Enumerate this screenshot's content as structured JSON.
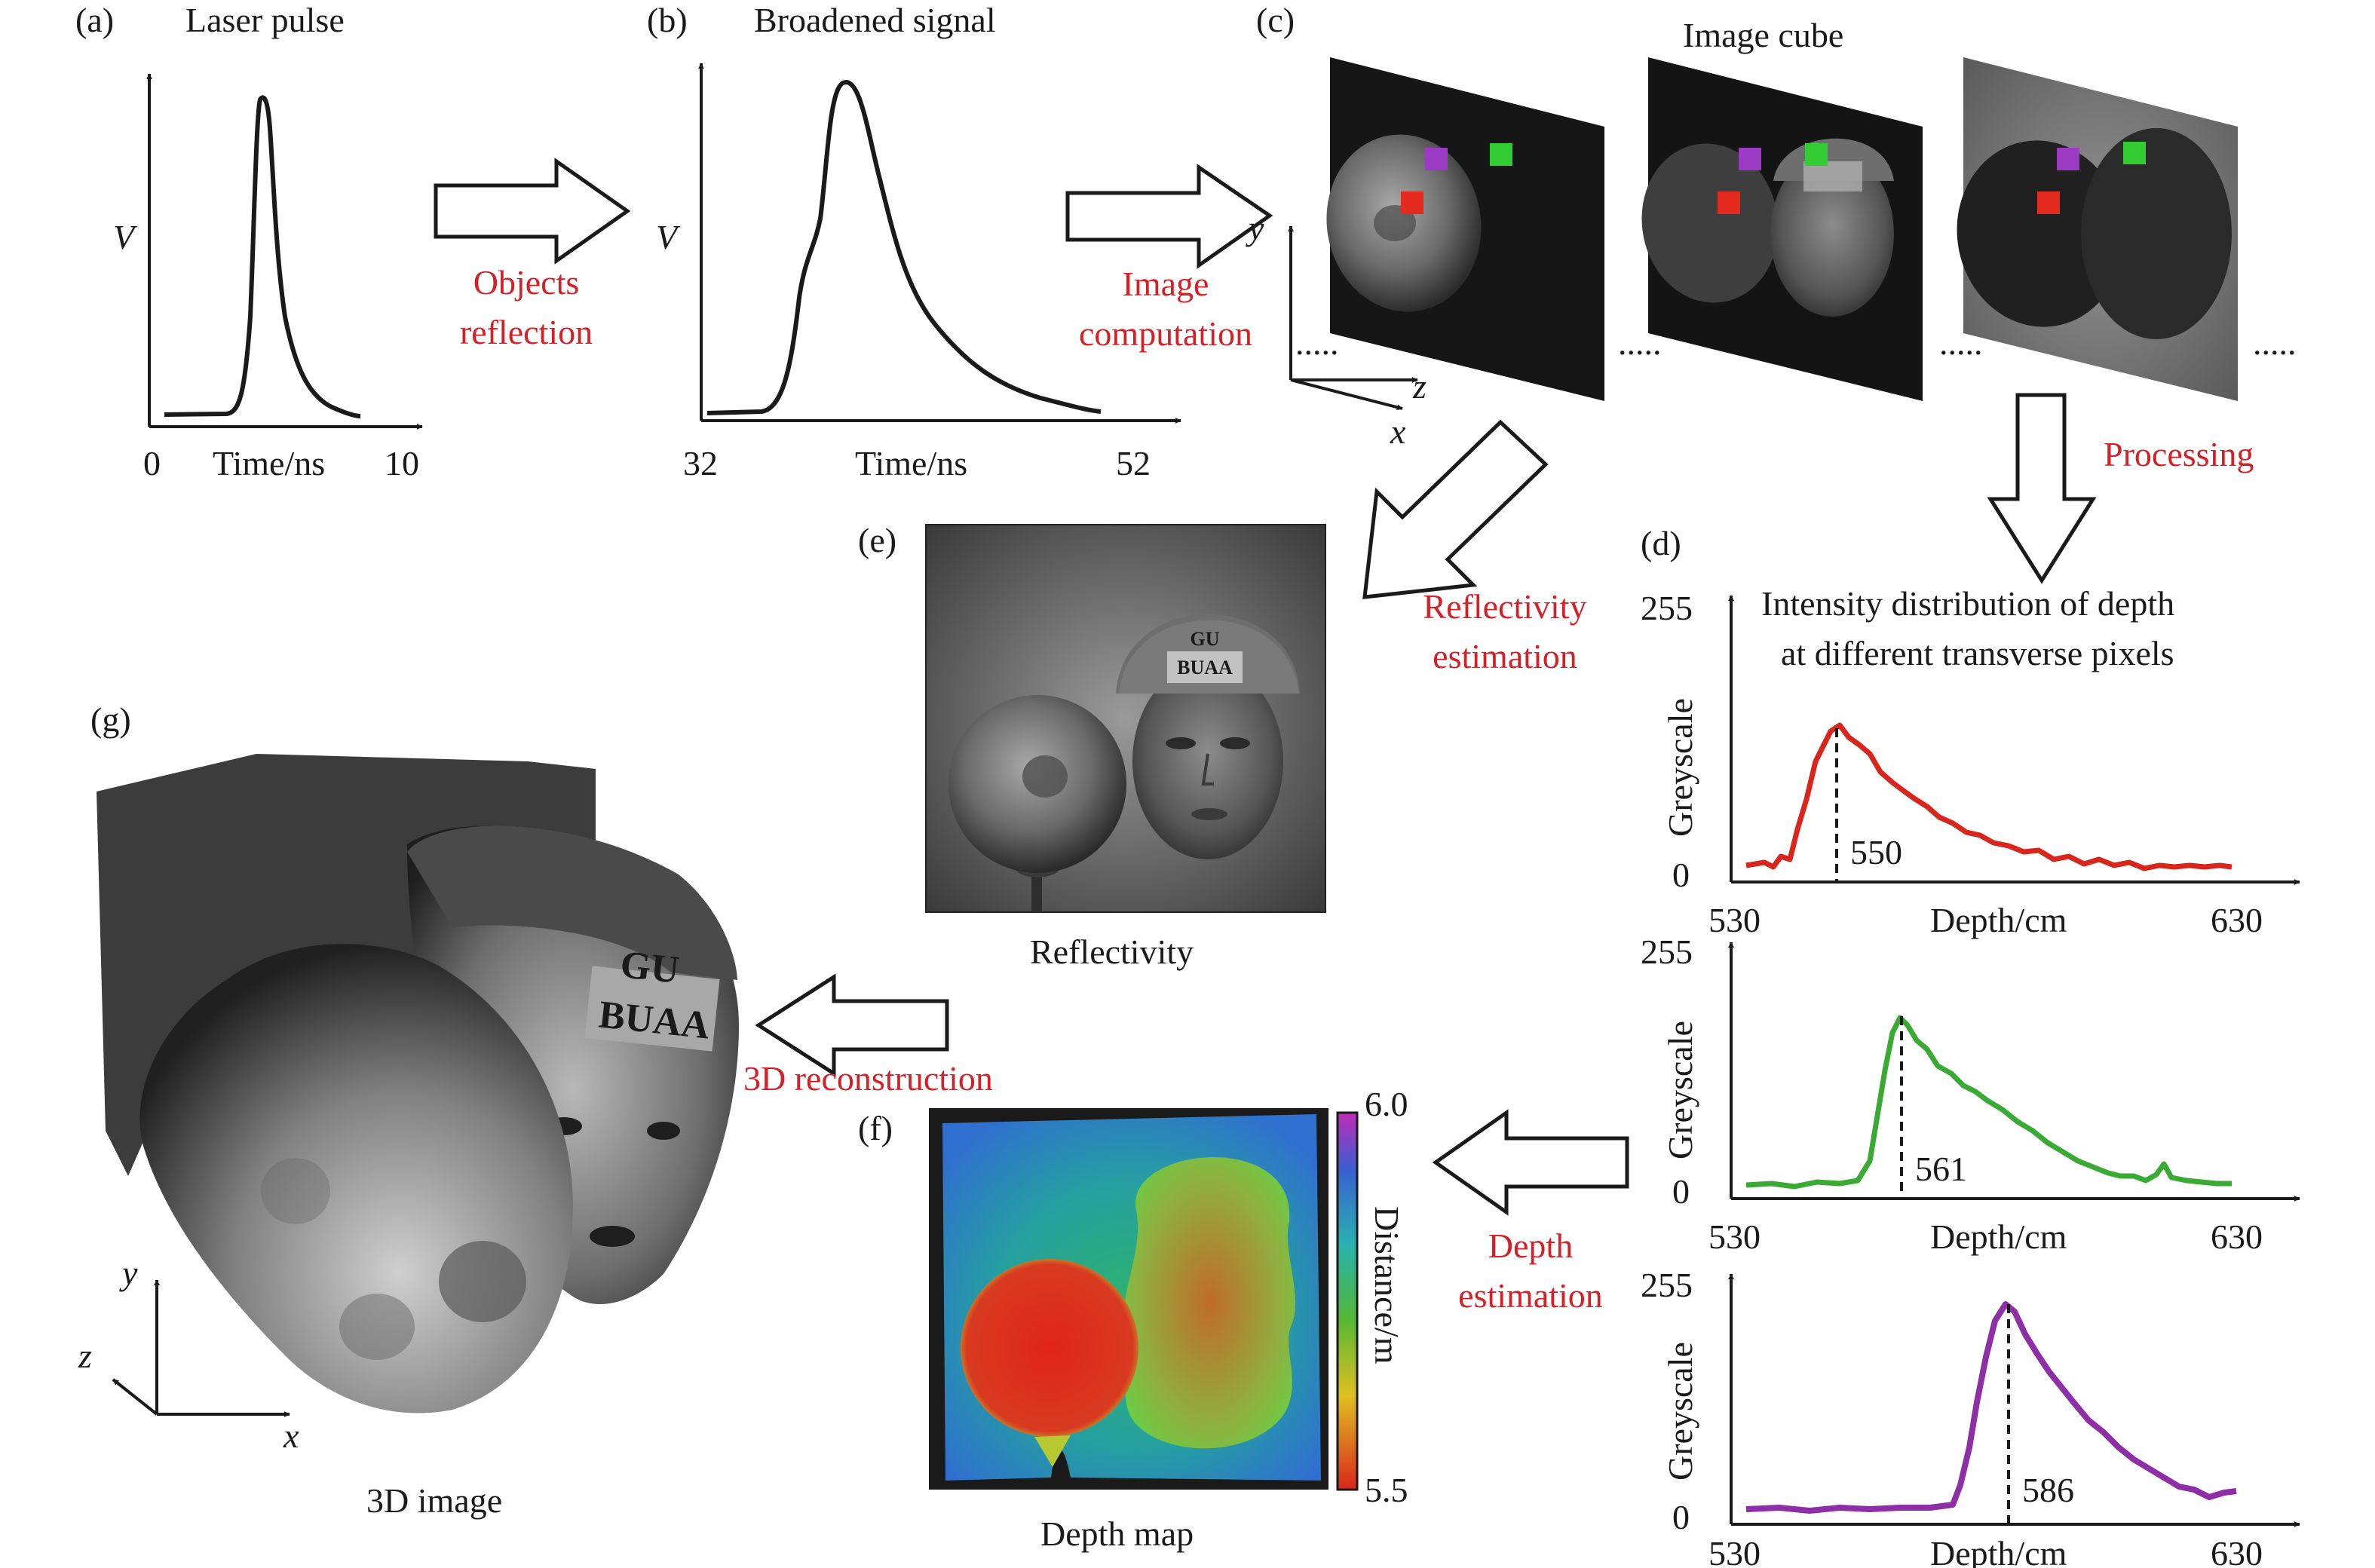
{
  "colors": {
    "red_label": "#d42027",
    "curve_red": "#d8261d",
    "curve_green": "#3aaa35",
    "curve_purple": "#8e2fa8",
    "pixel_purple": "#9b3bc4",
    "pixel_green": "#33cc33",
    "pixel_red": "#e52a1f"
  },
  "panels": {
    "a": {
      "letter": "(a)",
      "title": "Laser pulse",
      "ylabel": "V",
      "xlabel": "Time/ns",
      "xmin": "0",
      "xmax": "10"
    },
    "b": {
      "letter": "(b)",
      "title": "Broadened signal",
      "ylabel": "V",
      "xlabel": "Time/ns",
      "xmin": "32",
      "xmax": "52"
    },
    "c": {
      "letter": "(c)",
      "title": "Image cube",
      "axis_y": "y",
      "axis_x": "x",
      "axis_z": "z",
      "ellipsis": "....."
    },
    "d": {
      "letter": "(d)",
      "title_line1": "Intensity distribution of depth",
      "title_line2": "at different transverse pixels",
      "plots": [
        {
          "color": "red",
          "ylabel": "Greyscale",
          "ymax": "255",
          "ymin": "0",
          "xmin": "530",
          "xmax": "630",
          "xlabel": "Depth/cm",
          "peak_label": "550",
          "peak_depth": 550
        },
        {
          "color": "green",
          "ylabel": "Greyscale",
          "ymax": "255",
          "ymin": "0",
          "xmin": "530",
          "xmax": "630",
          "xlabel": "Depth/cm",
          "peak_label": "561",
          "peak_depth": 561
        },
        {
          "color": "purple",
          "ylabel": "Greyscale",
          "ymax": "255",
          "ymin": "0",
          "xmin": "530",
          "xmax": "630",
          "xlabel": "Depth/cm",
          "peak_label": "586",
          "peak_depth": 586
        }
      ]
    },
    "e": {
      "letter": "(e)",
      "caption": "Reflectivity",
      "helmet_line1": "GU",
      "helmet_line2": "BUAA"
    },
    "f": {
      "letter": "(f)",
      "caption": "Depth map",
      "cb_max": "6.0",
      "cb_min": "5.5",
      "cb_label": "Distance/m"
    },
    "g": {
      "letter": "(g)",
      "caption": "3D image",
      "axis_y": "y",
      "axis_z": "z",
      "axis_x": "x",
      "helmet_line1": "GU",
      "helmet_line2": "BUAA"
    }
  },
  "arrow_labels": {
    "objects_reflection_1": "Objects",
    "objects_reflection_2": "reflection",
    "image_computation_1": "Image",
    "image_computation_2": "computation",
    "processing": "Processing",
    "reflectivity_estimation_1": "Reflectivity",
    "reflectivity_estimation_2": "estimation",
    "reconstruction": "3D reconstruction",
    "depth_estimation_1": "Depth",
    "depth_estimation_2": "estimation"
  }
}
